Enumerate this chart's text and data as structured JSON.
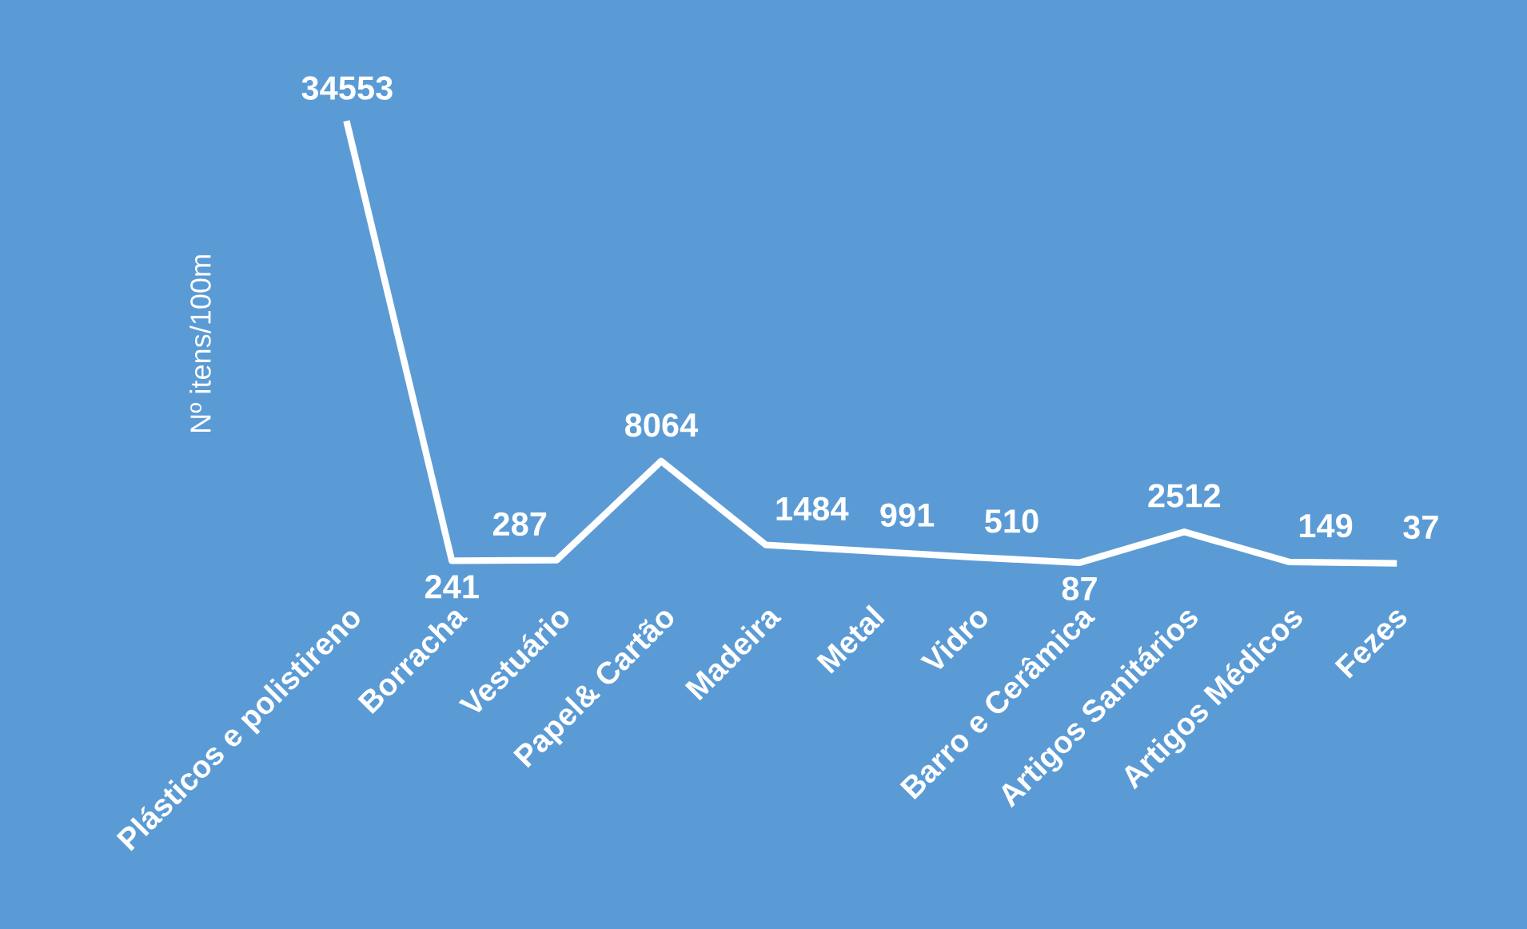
{
  "chart_data": {
    "type": "line",
    "ylabel": "Nº itens/100m",
    "categories": [
      "Plásticos e polistireno",
      "Borracha",
      "Vestuário",
      "Papel& Cartão",
      "Madeira",
      "Metal",
      "Vidro",
      "Barro e Cerâmica",
      "Artigos Sanitários",
      "Artigos Médicos",
      "Fezes"
    ],
    "series": [
      {
        "color": "#ffffff",
        "values": [
          34553,
          241,
          287,
          8064,
          1484,
          991,
          510,
          87,
          2512,
          149,
          37
        ]
      }
    ],
    "data_labels": true,
    "grid": false,
    "legend": false,
    "line_style": "solid"
  }
}
